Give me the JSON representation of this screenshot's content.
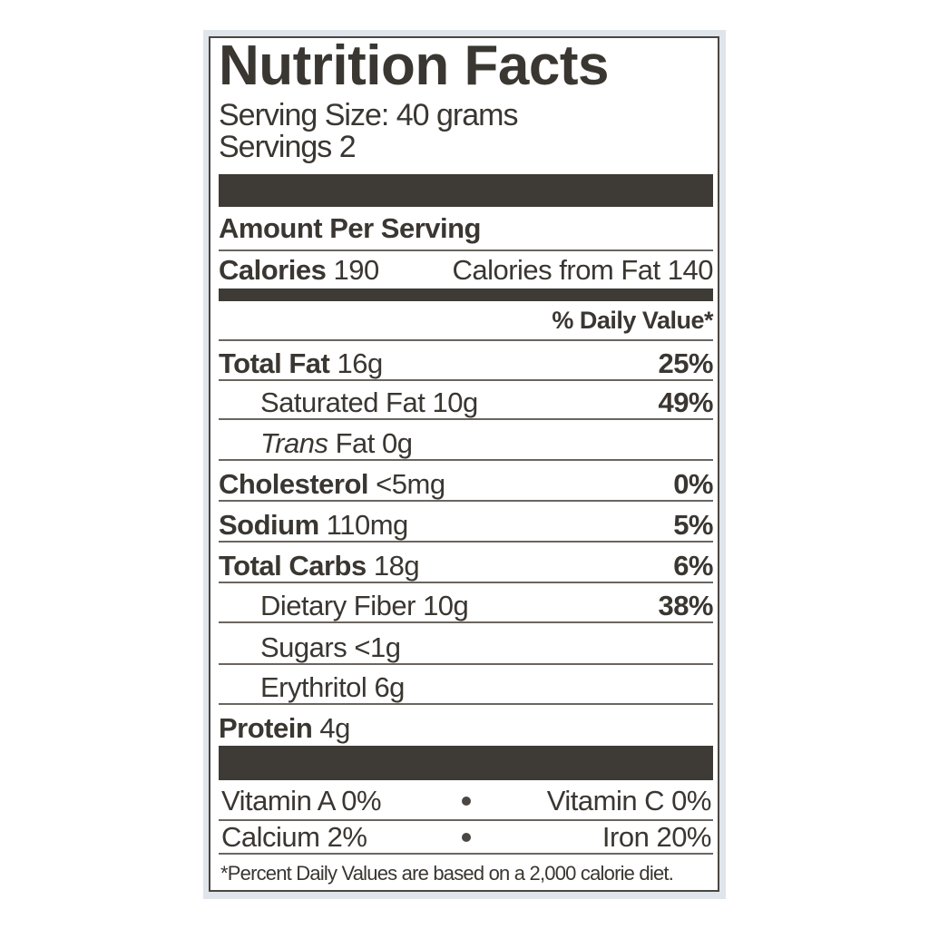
{
  "label": {
    "title": "Nutrition Facts",
    "serving_size": "Serving Size: 40 grams",
    "servings": "Servings 2",
    "amount_per_serving": "Amount Per Serving",
    "calories_label": "Calories",
    "calories_value": "190",
    "calories_from_fat": "Calories from Fat 140",
    "daily_value_header": "% Daily Value*",
    "nutrients": [
      {
        "name": "Total Fat",
        "amount": "16g",
        "dv": "25%",
        "bold": true,
        "indent": false
      },
      {
        "name": "Saturated Fat",
        "amount": "10g",
        "dv": "49%",
        "bold": false,
        "indent": true
      },
      {
        "name": "Trans",
        "name_suffix": "Fat",
        "amount": "0g",
        "dv": "",
        "bold": false,
        "indent": true,
        "italic": true
      },
      {
        "name": "Cholesterol",
        "amount": "<5mg",
        "dv": "0%",
        "bold": true,
        "indent": false
      },
      {
        "name": "Sodium",
        "amount": "110mg",
        "dv": "5%",
        "bold": true,
        "indent": false
      },
      {
        "name": "Total Carbs",
        "amount": "18g",
        "dv": "6%",
        "bold": true,
        "indent": false
      },
      {
        "name": "Dietary Fiber",
        "amount": "10g",
        "dv": "38%",
        "bold": false,
        "indent": true
      },
      {
        "name": "Sugars",
        "amount": "<1g",
        "dv": "",
        "bold": false,
        "indent": true
      },
      {
        "name": "Erythritol",
        "amount": "6g",
        "dv": "",
        "bold": false,
        "indent": true
      },
      {
        "name": "Protein",
        "amount": "4g",
        "dv": "",
        "bold": true,
        "indent": false
      }
    ],
    "vitamins": [
      {
        "left": "Vitamin A 0%",
        "right": "Vitamin C 0%"
      },
      {
        "left": "Calcium 2%",
        "right": "Iron 20%"
      }
    ],
    "footnote": "*Percent Daily Values are based on a 2,000 calorie diet."
  }
}
